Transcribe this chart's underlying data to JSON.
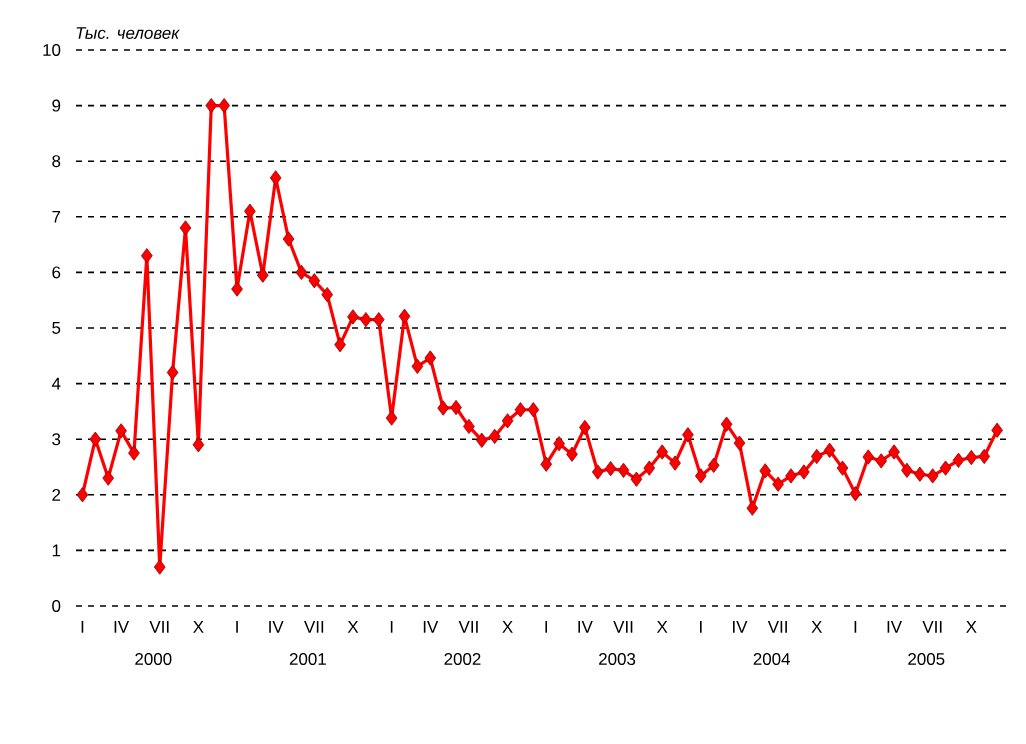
{
  "chart_data": {
    "type": "line",
    "ylabel": "Тыс. человек",
    "categories": [
      "I",
      null,
      null,
      "IV",
      null,
      null,
      "VII",
      null,
      null,
      "X",
      null,
      null,
      "I",
      null,
      null,
      "IV",
      null,
      null,
      "VII",
      null,
      null,
      "X",
      null,
      null,
      "I",
      null,
      null,
      "IV",
      null,
      null,
      "VII",
      null,
      null,
      "X",
      null,
      null,
      "I",
      null,
      null,
      "IV",
      null,
      null,
      "VII",
      null,
      null,
      "X",
      null,
      null,
      "I",
      null,
      null,
      "IV",
      null,
      null,
      "VII",
      null,
      null,
      "X",
      null,
      null,
      "I",
      null,
      null,
      "IV",
      null,
      null,
      "VII",
      null,
      null,
      "X",
      null,
      null
    ],
    "annotations": [
      "2000",
      "2001",
      "2002",
      "2003",
      "2004",
      "2005"
    ],
    "series": [
      {
        "color": "#ff0000",
        "values": [
          2.0,
          3.0,
          2.3,
          3.15,
          2.75,
          6.3,
          0.7,
          4.2,
          6.8,
          2.9,
          9.0,
          9.0,
          5.7,
          7.1,
          5.95,
          7.7,
          6.6,
          6.0,
          5.85,
          5.6,
          4.7,
          5.2,
          5.15,
          5.15,
          3.38,
          5.21,
          4.31,
          4.46,
          3.56,
          3.57,
          3.23,
          2.98,
          3.05,
          3.33,
          3.53,
          3.53,
          2.55,
          2.92,
          2.73,
          3.21,
          2.41,
          2.47,
          2.44,
          2.28,
          2.48,
          2.77,
          2.57,
          3.08,
          2.34,
          2.53,
          3.27,
          2.93,
          1.76,
          2.43,
          2.19,
          2.34,
          2.41,
          2.69,
          2.8,
          2.48,
          2.02,
          2.68,
          2.61,
          2.77,
          2.44,
          2.37,
          2.34,
          2.48,
          2.62,
          2.67,
          2.69,
          3.16
        ]
      }
    ],
    "ylim": [
      0,
      10
    ],
    "yticks": [
      0,
      1,
      2,
      3,
      4,
      5,
      6,
      7,
      8,
      9,
      10
    ],
    "grid": "y",
    "marker": "diamond",
    "line_style": "solid"
  }
}
